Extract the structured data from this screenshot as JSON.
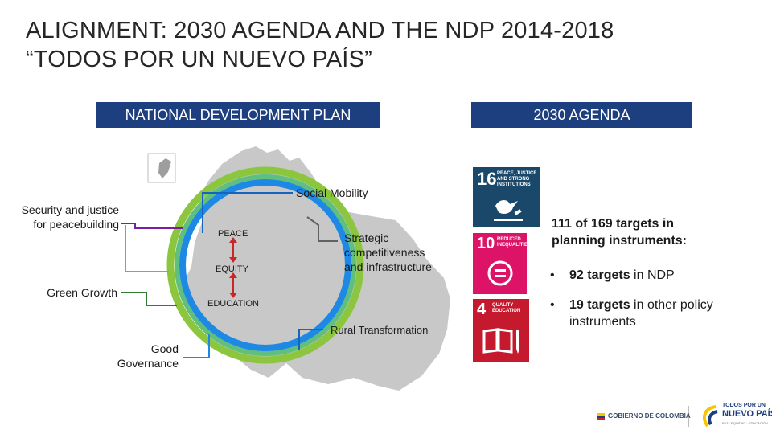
{
  "title": "ALIGNMENT: 2030 AGENDA AND THE NDP 2014-2018\n“TODOS POR UN NUEVO PAÍS”",
  "headers": {
    "ndp": "NATIONAL DEVELOPMENT PLAN",
    "agenda": "2030 AGENDA"
  },
  "ndp": {
    "pillars": {
      "peace": "PEACE",
      "equity": "EQUITY",
      "education": "EDUCATION"
    },
    "strategies": {
      "social_mobility": "Social Mobility",
      "security": "Security and justice\nfor peacebuilding",
      "green_growth": "Green Growth",
      "good_governance": "Good\nGovernance",
      "competitiveness": "Strategic\ncompetitiveness\nand infrastructure",
      "rural": "Rural Transformation"
    }
  },
  "sdgs": [
    {
      "number": "16",
      "name": "PEACE, JUSTICE\nAND STRONG\nINSTITUTIONS",
      "color": "#19486a",
      "icon": "dove-gavel-icon"
    },
    {
      "number": "10",
      "name": "REDUCED\nINEQUALITIES",
      "color": "#dd1367",
      "icon": "equals-circle-icon"
    },
    {
      "number": "4",
      "name": "QUALITY\nEDUCATION",
      "color": "#c5192d",
      "icon": "book-pencil-icon"
    }
  ],
  "stats": {
    "headline": "111 of 169 targets in planning instruments:",
    "items": [
      {
        "bold": "92 targets",
        "rest": " in NDP"
      },
      {
        "bold": "19 targets",
        "rest": " in other policy instruments"
      }
    ]
  },
  "footer": {
    "gobierno": "GOBIERNO DE COLOMBIA",
    "logo_line1": "TODOS POR UN",
    "logo_line2": "NUEVO PAÍS",
    "logo_line3": "PAZ · EQUIDAD · EDUCACIÓN"
  },
  "colors": {
    "header": "#1d3f7f",
    "ring_outer": "#8cc63f",
    "ring_inner": "#1e88e5",
    "ring_mid": "#5fbf7f",
    "map": "#c9c9c9",
    "peace_arrow": "#c62828"
  }
}
